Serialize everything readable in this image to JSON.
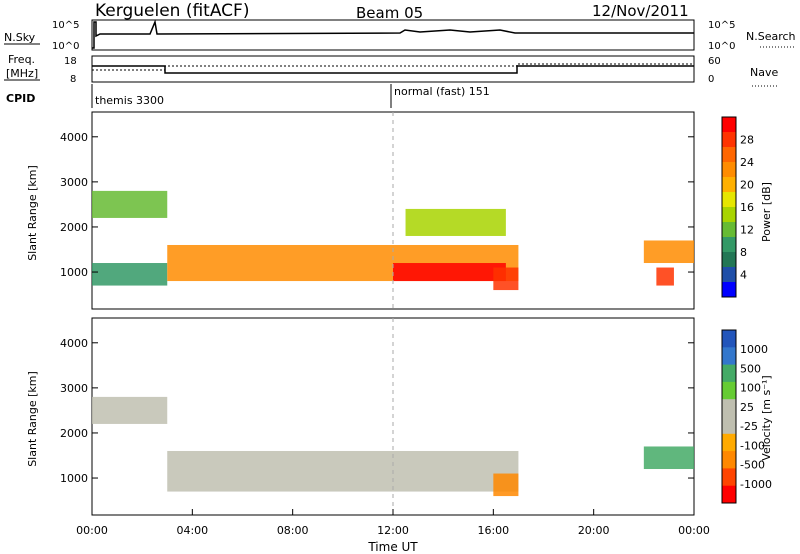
{
  "header": {
    "station": "Kerguelen (fitACF)",
    "beam": "Beam 05",
    "date": "12/Nov/2011"
  },
  "top_panels": {
    "nsky_label": "N.Sky",
    "nsky_ticks": [
      "10^5",
      "10^0"
    ],
    "nsearch_label": "N.Search",
    "nsearch_ticks": [
      "10^5",
      "10^0"
    ],
    "freq_label_1": "Freq.",
    "freq_label_2": "[MHz]",
    "freq_ticks": [
      "18",
      "8"
    ],
    "nave_label": "Nave",
    "nave_ticks": [
      "60",
      "0"
    ],
    "cpid_label": "CPID",
    "cpid_segments": [
      {
        "label": "themis 3300",
        "start_hour": 0
      },
      {
        "label": "normal (fast) 151",
        "start_hour": 12
      }
    ]
  },
  "x_axis": {
    "label": "Time UT",
    "ticks": [
      "00:00",
      "04:00",
      "08:00",
      "12:00",
      "16:00",
      "20:00",
      "00:00"
    ],
    "range_hours": [
      0,
      24
    ]
  },
  "chart_data": [
    {
      "type": "heatmap",
      "title": "Power",
      "ylabel": "Slant Range [km]",
      "yticks": [
        "4000",
        "3000",
        "2000",
        "1000"
      ],
      "ylim": [
        180,
        4550
      ],
      "colorbar": {
        "label": "Power [dB]",
        "ticks": [
          "28",
          "24",
          "20",
          "16",
          "12",
          "8",
          "4"
        ],
        "colors": [
          "#ff0000",
          "#ff3300",
          "#ff6600",
          "#ff8c00",
          "#ffb000",
          "#e6e600",
          "#a8d400",
          "#66bb33",
          "#339966",
          "#227755",
          "#1f4fa8",
          "#0000ff"
        ]
      },
      "regions": [
        {
          "t0": 0.0,
          "t1": 3.0,
          "r0": 2200,
          "r1": 2800,
          "level": 12
        },
        {
          "t0": 0.0,
          "t1": 3.0,
          "r0": 700,
          "r1": 1200,
          "level": 10
        },
        {
          "t0": 3.0,
          "t1": 17.0,
          "r0": 800,
          "r1": 1600,
          "level": 22
        },
        {
          "t0": 12.0,
          "t1": 16.5,
          "r0": 800,
          "r1": 1200,
          "level": 28
        },
        {
          "t0": 16.0,
          "t1": 17.0,
          "r0": 600,
          "r1": 1100,
          "level": 26
        },
        {
          "t0": 12.5,
          "t1": 16.5,
          "r0": 1800,
          "r1": 2400,
          "level": 14
        },
        {
          "t0": 22.0,
          "t1": 24.0,
          "r0": 1200,
          "r1": 1700,
          "level": 22
        },
        {
          "t0": 22.5,
          "t1": 23.2,
          "r0": 700,
          "r1": 1100,
          "level": 26
        }
      ]
    },
    {
      "type": "heatmap",
      "title": "Velocity",
      "ylabel": "Slant Range [km]",
      "yticks": [
        "4000",
        "3000",
        "2000",
        "1000"
      ],
      "ylim": [
        180,
        4550
      ],
      "colorbar": {
        "label": "Velocity [m s⁻¹]",
        "ticks": [
          "1000",
          "500",
          "100",
          "25",
          "-25",
          "-100",
          "-500",
          "-1000"
        ],
        "colors": [
          "#2255bb",
          "#3377cc",
          "#44aa66",
          "#66cc33",
          "#bfbfb0",
          "#bfbfb0",
          "#ffaa00",
          "#ff8800",
          "#ff4400",
          "#ff0000"
        ]
      },
      "regions": [
        {
          "t0": 0.0,
          "t1": 3.0,
          "r0": 2200,
          "r1": 2800,
          "level": 0
        },
        {
          "t0": 3.0,
          "t1": 17.0,
          "r0": 700,
          "r1": 1600,
          "level": 0
        },
        {
          "t0": 16.0,
          "t1": 17.0,
          "r0": 600,
          "r1": 1100,
          "level": -400
        },
        {
          "t0": 22.0,
          "t1": 24.0,
          "r0": 1200,
          "r1": 1700,
          "level": 300
        }
      ]
    }
  ]
}
